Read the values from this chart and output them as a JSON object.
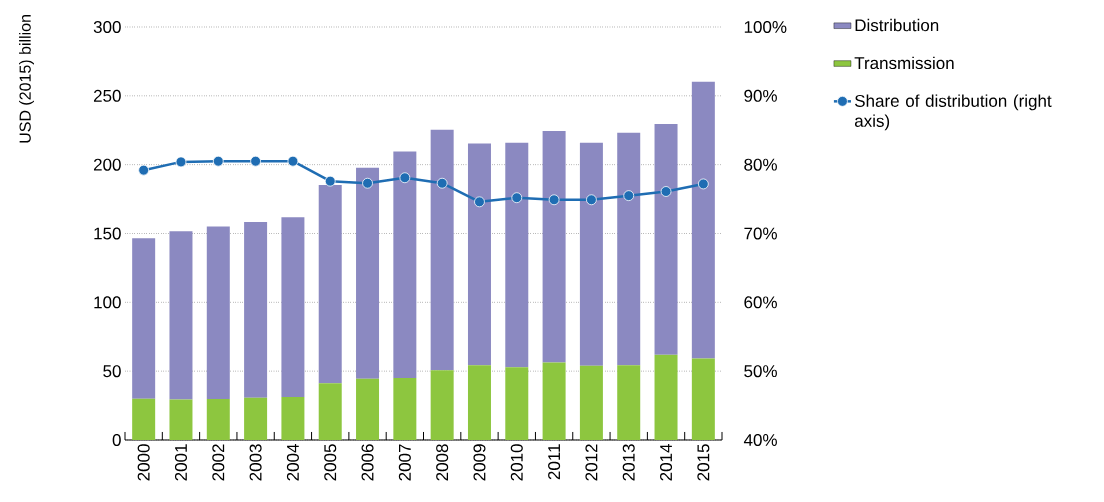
{
  "chart_data": {
    "type": "bar",
    "stacked": true,
    "ylabel": "USD (2015) billion",
    "categories": [
      "2000",
      "2001",
      "2002",
      "2003",
      "2004",
      "2005",
      "2006",
      "2007",
      "2008",
      "2009",
      "2010",
      "2011",
      "2012",
      "2013",
      "2014",
      "2015"
    ],
    "series": [
      {
        "name": "Transmission",
        "color": "#8dc63f",
        "values": [
          30,
          29.4,
          29.7,
          30.6,
          31.3,
          41.2,
          44.4,
          45.1,
          50.6,
          54.2,
          52.8,
          56.2,
          54,
          54.2,
          62,
          59.1
        ]
      },
      {
        "name": "Distribution",
        "color": "#8b89c1",
        "values": [
          116.6,
          122.2,
          125.3,
          127.8,
          130.5,
          144,
          153.3,
          164.4,
          174.8,
          161.1,
          163.2,
          168.2,
          162,
          169,
          167.5,
          201.2
        ]
      },
      {
        "name": "Share of distribution (right axis)",
        "type": "line",
        "axis": "y2",
        "color": "#1f6db3",
        "marker": "circle",
        "values": [
          79.2,
          80.4,
          80.5,
          80.5,
          80.5,
          77.6,
          77.3,
          78.1,
          77.3,
          74.6,
          75.2,
          74.9,
          74.9,
          75.5,
          76.1,
          77.2
        ]
      }
    ],
    "ylim": [
      0,
      300
    ],
    "yticks": [
      0,
      50,
      100,
      150,
      200,
      250,
      300
    ],
    "y2lim": [
      40,
      100
    ],
    "y2ticks": [
      {
        "value": 40,
        "label": "40%"
      },
      {
        "value": 50,
        "label": "50%"
      },
      {
        "value": 60,
        "label": "60%"
      },
      {
        "value": 70,
        "label": "70%"
      },
      {
        "value": 80,
        "label": "80%"
      },
      {
        "value": 90,
        "label": "90%"
      },
      {
        "value": 100,
        "label": "100%"
      }
    ],
    "grid": "y",
    "legend": "top right"
  }
}
